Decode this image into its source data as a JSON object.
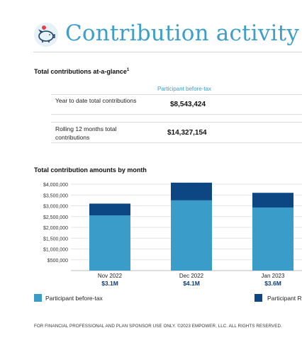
{
  "header": {
    "title": "Contribution activity",
    "icon": "piggy-bank-icon"
  },
  "glance": {
    "title": "Total contributions at-a-glance",
    "footnote": "1",
    "column_header": "Participant before-tax",
    "rows": [
      {
        "label": "Year to date total contributions",
        "value": "$8,543,424"
      },
      {
        "label": "Rolling 12 months total contributions",
        "value": "$14,327,154"
      }
    ]
  },
  "monthly": {
    "title": "Total contribution amounts by month"
  },
  "legend": [
    {
      "label": "Participant before-tax",
      "color": "#3a9cc8"
    },
    {
      "label": "Participant R",
      "color": "#0c4683"
    }
  ],
  "chart_data": {
    "type": "bar",
    "stacked": true,
    "categories": [
      "Nov 2022",
      "Dec 2022",
      "Jan 2023"
    ],
    "category_totals": [
      "$3.1M",
      "$4.1M",
      "$3.6M"
    ],
    "series": [
      {
        "name": "Participant before-tax",
        "values": [
          2550000,
          3250000,
          2920000
        ],
        "color": "#3a9cc8"
      },
      {
        "name": "Participant R",
        "values": [
          550000,
          820000,
          680000
        ],
        "color": "#0c4683"
      }
    ],
    "ytick_labels": [
      "$500,000",
      "$1,000,000",
      "$1,500,000",
      "$2,000,000",
      "$2,500,000",
      "$3,000,000",
      "$3,500,000",
      "$4,000,000"
    ],
    "yticks": [
      500000,
      1000000,
      1500000,
      2000000,
      2500000,
      3000000,
      3500000,
      4000000
    ],
    "ylim": [
      0,
      4000000
    ],
    "grid": true,
    "legend_position": "bottom"
  },
  "footer": {
    "text": "FOR FINANCIAL PROFESSIONAL AND PLAN SPONSOR USE ONLY. ©2023 EMPOWER, LLC. ALL RIGHTS RESERVED."
  }
}
